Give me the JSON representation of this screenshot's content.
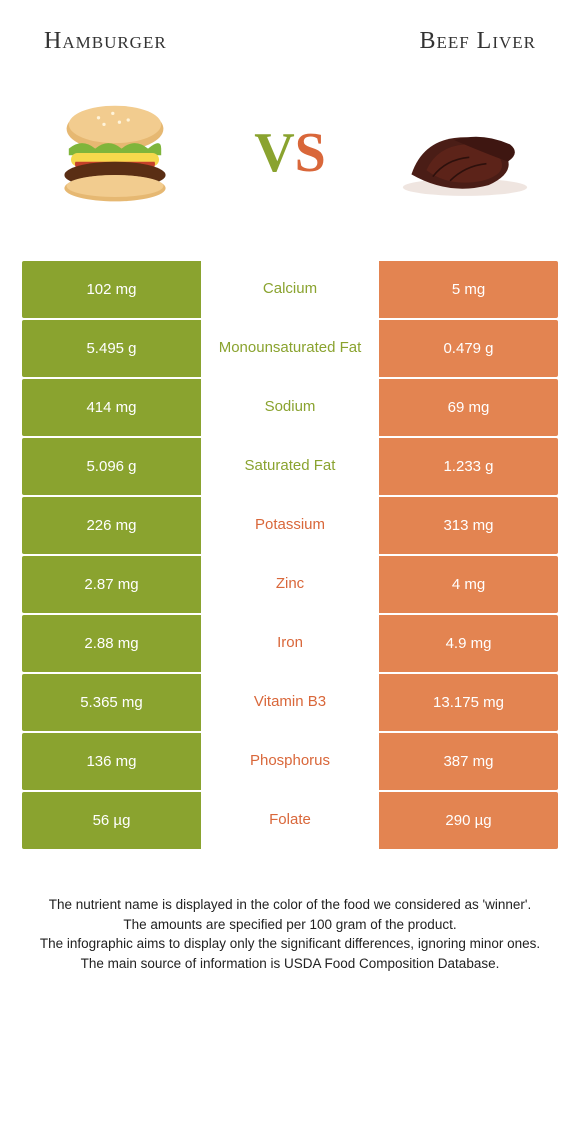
{
  "header": {
    "left": "Hamburger",
    "right": "Beef Liver"
  },
  "colors": {
    "green": "#8aa32f",
    "orange": "#e38451",
    "orange_text": "#d9673a"
  },
  "rows": [
    {
      "left": "102 mg",
      "mid": "Calcium",
      "right": "5 mg",
      "winner": "left"
    },
    {
      "left": "5.495 g",
      "mid": "Monounsaturated Fat",
      "right": "0.479 g",
      "winner": "left"
    },
    {
      "left": "414 mg",
      "mid": "Sodium",
      "right": "69 mg",
      "winner": "left"
    },
    {
      "left": "5.096 g",
      "mid": "Saturated Fat",
      "right": "1.233 g",
      "winner": "left"
    },
    {
      "left": "226 mg",
      "mid": "Potassium",
      "right": "313 mg",
      "winner": "right"
    },
    {
      "left": "2.87 mg",
      "mid": "Zinc",
      "right": "4 mg",
      "winner": "right"
    },
    {
      "left": "2.88 mg",
      "mid": "Iron",
      "right": "4.9 mg",
      "winner": "right"
    },
    {
      "left": "5.365 mg",
      "mid": "Vitamin B3",
      "right": "13.175 mg",
      "winner": "right"
    },
    {
      "left": "136 mg",
      "mid": "Phosphorus",
      "right": "387 mg",
      "winner": "right"
    },
    {
      "left": "56 µg",
      "mid": "Folate",
      "right": "290 µg",
      "winner": "right"
    }
  ],
  "footer": {
    "l1": "The nutrient name is displayed in the color of the food we considered as 'winner'.",
    "l2": "The amounts are specified per 100 gram of the product.",
    "l3": "The infographic aims to display only the significant differences, ignoring minor ones.",
    "l4": "The main source of information is USDA Food Composition Database."
  }
}
